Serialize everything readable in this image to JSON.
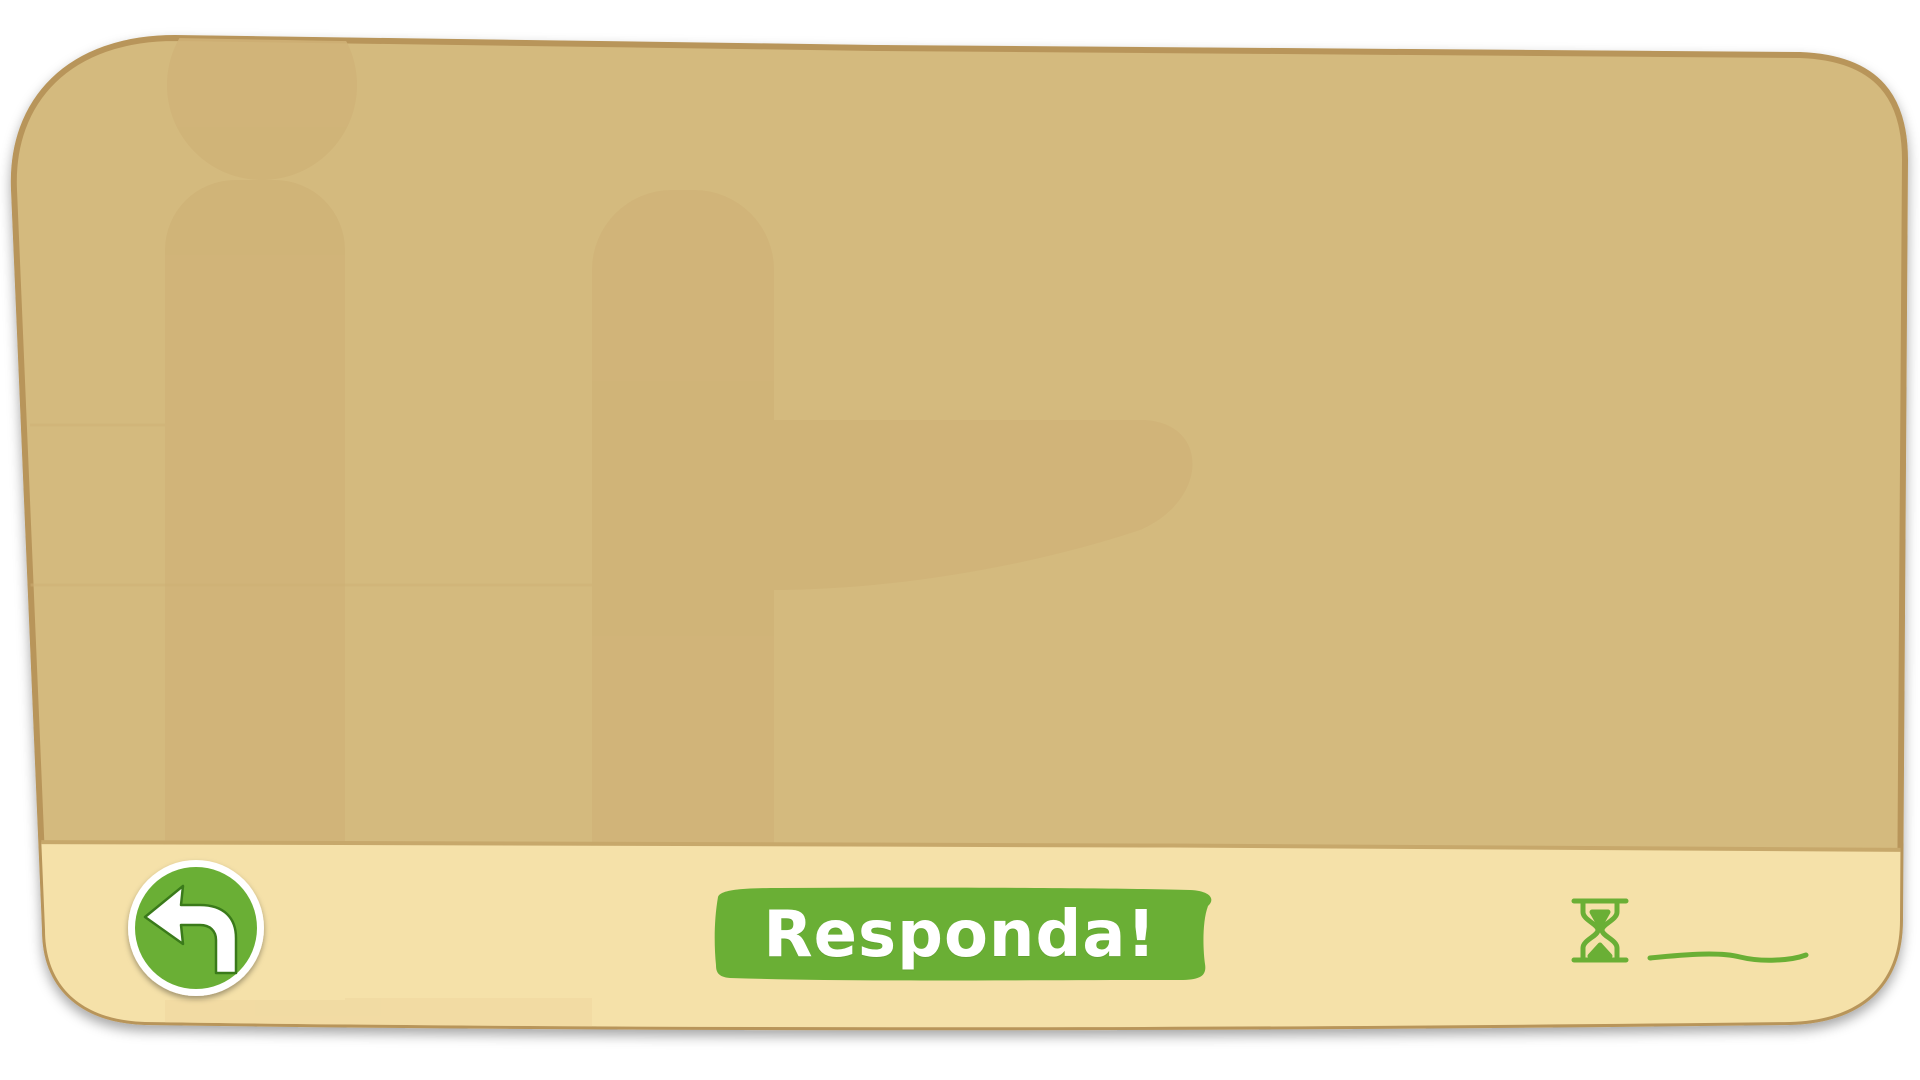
{
  "answer_button": {
    "label": "Responda!"
  },
  "back_button": {
    "icon": "back-arrow-icon"
  },
  "timer": {
    "icon": "hourglass-icon",
    "value": ""
  },
  "colors": {
    "board_fill": "#d4ba7e",
    "board_border": "#b8955a",
    "footer_fill": "#f5e1a9",
    "watermark": "#cfb277",
    "accent_green": "#6aaf35",
    "button_ring": "#ffffff"
  }
}
